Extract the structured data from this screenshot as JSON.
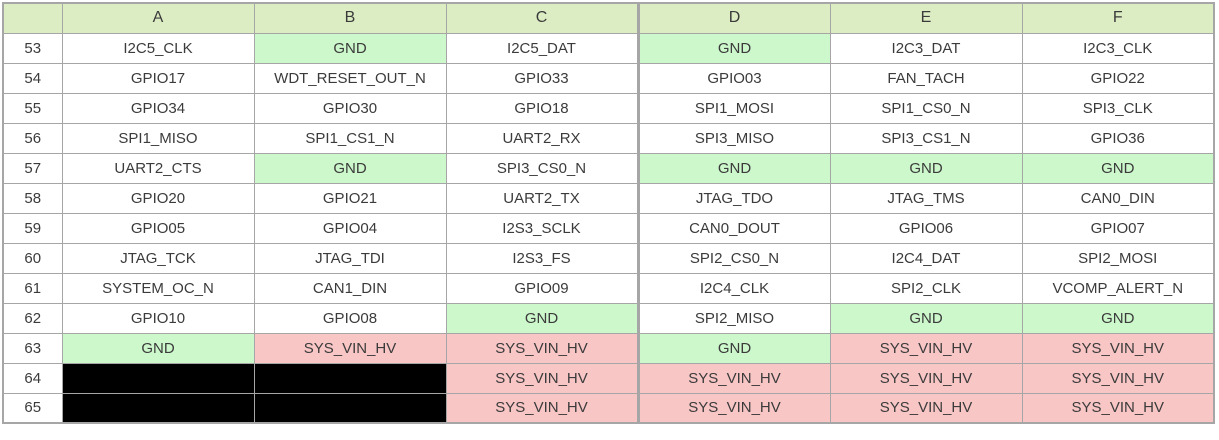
{
  "colors": {
    "header_bg": "#dcedc3",
    "gnd_bg": "#ccf8cc",
    "power_bg": "#f9c6c6",
    "black_bg": "#000000",
    "grid": "#a6a6a6",
    "text": "#3b3b3b"
  },
  "table": {
    "corner_label": "",
    "columns": [
      "A",
      "B",
      "C",
      "D",
      "E",
      "F"
    ],
    "rows": [
      {
        "num": "53",
        "cells": [
          {
            "t": "I2C5_CLK",
            "s": ""
          },
          {
            "t": "GND",
            "s": "gnd"
          },
          {
            "t": "I2C5_DAT",
            "s": ""
          },
          {
            "t": "GND",
            "s": "gnd"
          },
          {
            "t": "I2C3_DAT",
            "s": ""
          },
          {
            "t": "I2C3_CLK",
            "s": ""
          }
        ]
      },
      {
        "num": "54",
        "cells": [
          {
            "t": "GPIO17",
            "s": ""
          },
          {
            "t": "WDT_RESET_OUT_N",
            "s": ""
          },
          {
            "t": "GPIO33",
            "s": ""
          },
          {
            "t": "GPIO03",
            "s": ""
          },
          {
            "t": "FAN_TACH",
            "s": ""
          },
          {
            "t": "GPIO22",
            "s": ""
          }
        ]
      },
      {
        "num": "55",
        "cells": [
          {
            "t": "GPIO34",
            "s": ""
          },
          {
            "t": "GPIO30",
            "s": ""
          },
          {
            "t": "GPIO18",
            "s": ""
          },
          {
            "t": "SPI1_MOSI",
            "s": ""
          },
          {
            "t": "SPI1_CS0_N",
            "s": ""
          },
          {
            "t": "SPI3_CLK",
            "s": ""
          }
        ]
      },
      {
        "num": "56",
        "cells": [
          {
            "t": "SPI1_MISO",
            "s": ""
          },
          {
            "t": "SPI1_CS1_N",
            "s": ""
          },
          {
            "t": "UART2_RX",
            "s": ""
          },
          {
            "t": "SPI3_MISO",
            "s": ""
          },
          {
            "t": "SPI3_CS1_N",
            "s": ""
          },
          {
            "t": "GPIO36",
            "s": ""
          }
        ]
      },
      {
        "num": "57",
        "cells": [
          {
            "t": "UART2_CTS",
            "s": ""
          },
          {
            "t": "GND",
            "s": "gnd"
          },
          {
            "t": "SPI3_CS0_N",
            "s": ""
          },
          {
            "t": "GND",
            "s": "gnd"
          },
          {
            "t": "GND",
            "s": "gnd"
          },
          {
            "t": "GND",
            "s": "gnd"
          }
        ]
      },
      {
        "num": "58",
        "cells": [
          {
            "t": "GPIO20",
            "s": ""
          },
          {
            "t": "GPIO21",
            "s": ""
          },
          {
            "t": "UART2_TX",
            "s": ""
          },
          {
            "t": "JTAG_TDO",
            "s": ""
          },
          {
            "t": "JTAG_TMS",
            "s": ""
          },
          {
            "t": "CAN0_DIN",
            "s": ""
          }
        ]
      },
      {
        "num": "59",
        "cells": [
          {
            "t": "GPIO05",
            "s": ""
          },
          {
            "t": "GPIO04",
            "s": ""
          },
          {
            "t": "I2S3_SCLK",
            "s": ""
          },
          {
            "t": "CAN0_DOUT",
            "s": ""
          },
          {
            "t": "GPIO06",
            "s": ""
          },
          {
            "t": "GPIO07",
            "s": ""
          }
        ]
      },
      {
        "num": "60",
        "cells": [
          {
            "t": "JTAG_TCK",
            "s": ""
          },
          {
            "t": "JTAG_TDI",
            "s": ""
          },
          {
            "t": "I2S3_FS",
            "s": ""
          },
          {
            "t": "SPI2_CS0_N",
            "s": ""
          },
          {
            "t": "I2C4_DAT",
            "s": ""
          },
          {
            "t": "SPI2_MOSI",
            "s": ""
          }
        ]
      },
      {
        "num": "61",
        "cells": [
          {
            "t": "SYSTEM_OC_N",
            "s": ""
          },
          {
            "t": "CAN1_DIN",
            "s": ""
          },
          {
            "t": "GPIO09",
            "s": ""
          },
          {
            "t": "I2C4_CLK",
            "s": ""
          },
          {
            "t": "SPI2_CLK",
            "s": ""
          },
          {
            "t": "VCOMP_ALERT_N",
            "s": ""
          }
        ]
      },
      {
        "num": "62",
        "cells": [
          {
            "t": "GPIO10",
            "s": ""
          },
          {
            "t": "GPIO08",
            "s": ""
          },
          {
            "t": "GND",
            "s": "gnd"
          },
          {
            "t": "SPI2_MISO",
            "s": ""
          },
          {
            "t": "GND",
            "s": "gnd"
          },
          {
            "t": "GND",
            "s": "gnd"
          }
        ]
      },
      {
        "num": "63",
        "cells": [
          {
            "t": "GND",
            "s": "gnd"
          },
          {
            "t": "SYS_VIN_HV",
            "s": "pwr"
          },
          {
            "t": "SYS_VIN_HV",
            "s": "pwr"
          },
          {
            "t": "GND",
            "s": "gnd"
          },
          {
            "t": "SYS_VIN_HV",
            "s": "pwr"
          },
          {
            "t": "SYS_VIN_HV",
            "s": "pwr"
          }
        ]
      },
      {
        "num": "64",
        "cells": [
          {
            "t": "",
            "s": "blk"
          },
          {
            "t": "",
            "s": "blk"
          },
          {
            "t": "SYS_VIN_HV",
            "s": "pwr"
          },
          {
            "t": "SYS_VIN_HV",
            "s": "pwr"
          },
          {
            "t": "SYS_VIN_HV",
            "s": "pwr"
          },
          {
            "t": "SYS_VIN_HV",
            "s": "pwr"
          }
        ]
      },
      {
        "num": "65",
        "cells": [
          {
            "t": "",
            "s": "blk"
          },
          {
            "t": "",
            "s": "blk"
          },
          {
            "t": "SYS_VIN_HV",
            "s": "pwr"
          },
          {
            "t": "SYS_VIN_HV",
            "s": "pwr"
          },
          {
            "t": "SYS_VIN_HV",
            "s": "pwr"
          },
          {
            "t": "SYS_VIN_HV",
            "s": "pwr"
          }
        ]
      }
    ]
  }
}
